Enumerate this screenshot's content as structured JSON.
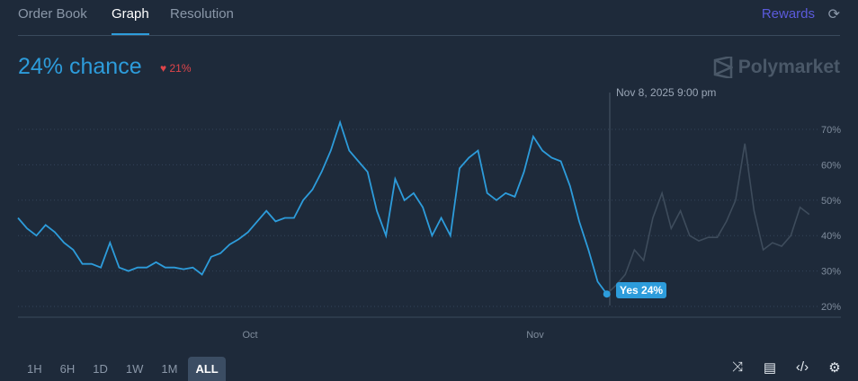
{
  "tabs": [
    {
      "label": "Order Book",
      "active": false
    },
    {
      "label": "Graph",
      "active": true
    },
    {
      "label": "Resolution",
      "active": false
    }
  ],
  "rewards_label": "Rewards",
  "icons": {
    "refresh": "refresh-icon",
    "shuffle": "shuffle-icon",
    "document": "document-icon",
    "embed": "code-icon",
    "settings": "gear-icon",
    "logo": "polymarket-logo-icon"
  },
  "chance_label": "24% chance",
  "change_label": "21%",
  "change_direction": "down",
  "brand": "Polymarket",
  "hover": {
    "time_label": "Nov 8, 2025 9:00 pm",
    "date": "2025-11-08",
    "tooltip": "Yes 24%"
  },
  "time_ranges": [
    {
      "label": "1H",
      "active": false
    },
    {
      "label": "6H",
      "active": false
    },
    {
      "label": "1D",
      "active": false
    },
    {
      "label": "1W",
      "active": false
    },
    {
      "label": "1M",
      "active": false
    },
    {
      "label": "ALL",
      "active": true
    }
  ],
  "colors": {
    "line": "#2d9cdb",
    "future_line": "#3e4c5c",
    "negative": "#e0454a",
    "accent": "#5b5bdc"
  },
  "chart_data": {
    "type": "line",
    "xlabel": "",
    "ylabel": "",
    "x_ticks": [
      "Oct",
      "Nov"
    ],
    "y_ticks": [
      "70%",
      "60%",
      "50%",
      "40%",
      "30%",
      "20%"
    ],
    "ylim": [
      17,
      73
    ],
    "grid": true,
    "series": [
      {
        "x": [
          "2025-09-05",
          "2025-09-06",
          "2025-09-07",
          "2025-09-08",
          "2025-09-09",
          "2025-09-10",
          "2025-09-11",
          "2025-09-12",
          "2025-09-13",
          "2025-09-14",
          "2025-09-15",
          "2025-09-16",
          "2025-09-17",
          "2025-09-18",
          "2025-09-19",
          "2025-09-20",
          "2025-09-21",
          "2025-09-22",
          "2025-09-23",
          "2025-09-24",
          "2025-09-25",
          "2025-09-26",
          "2025-09-27",
          "2025-09-28",
          "2025-09-29",
          "2025-09-30",
          "2025-10-01",
          "2025-10-02",
          "2025-10-03",
          "2025-10-04",
          "2025-10-05",
          "2025-10-06",
          "2025-10-07",
          "2025-10-08",
          "2025-10-09",
          "2025-10-10",
          "2025-10-11",
          "2025-10-12",
          "2025-10-13",
          "2025-10-14",
          "2025-10-15",
          "2025-10-16",
          "2025-10-17",
          "2025-10-18",
          "2025-10-19",
          "2025-10-20",
          "2025-10-21",
          "2025-10-22",
          "2025-10-23",
          "2025-10-24",
          "2025-10-25",
          "2025-10-26",
          "2025-10-27",
          "2025-10-28",
          "2025-10-29",
          "2025-10-30",
          "2025-10-31",
          "2025-11-01",
          "2025-11-02",
          "2025-11-03",
          "2025-11-04",
          "2025-11-05",
          "2025-11-06",
          "2025-11-07",
          "2025-11-08",
          "2025-11-09",
          "2025-11-10",
          "2025-11-11",
          "2025-11-12",
          "2025-11-13",
          "2025-11-14",
          "2025-11-15",
          "2025-11-16",
          "2025-11-17",
          "2025-11-18",
          "2025-11-19",
          "2025-11-20",
          "2025-11-21",
          "2025-11-22",
          "2025-11-23",
          "2025-11-24",
          "2025-11-25",
          "2025-11-26",
          "2025-11-27",
          "2025-11-28",
          "2025-11-29",
          "2025-11-30"
        ],
        "values": [
          45,
          42,
          40,
          43,
          41,
          38,
          36,
          32,
          32,
          31,
          38,
          31,
          30,
          31,
          31,
          32.5,
          31,
          31,
          30.5,
          31,
          29,
          34,
          35,
          37.5,
          39,
          41,
          44,
          47,
          44,
          45,
          45,
          50,
          53,
          58,
          64,
          72,
          64,
          61,
          58,
          47,
          40,
          56,
          50,
          52,
          48,
          40,
          45,
          40,
          59,
          62,
          64,
          52,
          50,
          52,
          51,
          58,
          68,
          64,
          62,
          61,
          54,
          44,
          36,
          27,
          23.5,
          26,
          29,
          36,
          33,
          45,
          52,
          42,
          47,
          40,
          38.5,
          39.5,
          39.5,
          44,
          50,
          66,
          47,
          36,
          38,
          37,
          40,
          48,
          46
        ]
      }
    ]
  }
}
